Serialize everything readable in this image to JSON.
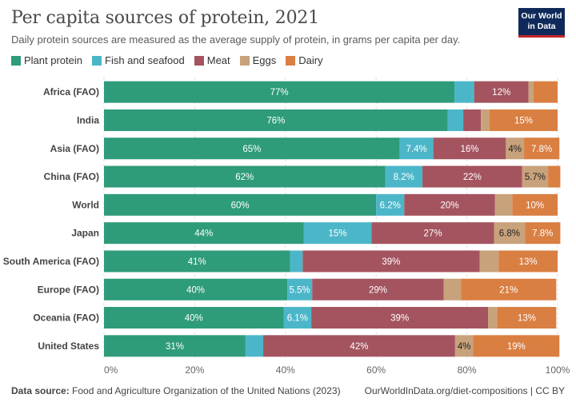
{
  "header": {
    "title": "Per capita sources of protein, 2021",
    "subtitle": "Daily protein sources are measured as the average supply of protein, in grams per capita per day.",
    "logo_line1": "Our World",
    "logo_line2": "in Data"
  },
  "footer": {
    "source_label": "Data source:",
    "source_text": "Food and Agriculture Organization of the United Nations (2023)",
    "right_text": "OurWorldInData.org/diet-compositions | CC BY"
  },
  "chart_data": {
    "type": "bar",
    "orientation": "horizontal",
    "stacked": true,
    "xlim": [
      0,
      100
    ],
    "xticks": [
      "0%",
      "20%",
      "40%",
      "60%",
      "80%",
      "100%"
    ],
    "grid": true,
    "legend_position": "top-left",
    "categories": [
      "Africa (FAO)",
      "India",
      "Asia (FAO)",
      "China (FAO)",
      "World",
      "Japan",
      "South America (FAO)",
      "Europe (FAO)",
      "Oceania (FAO)",
      "United States"
    ],
    "series": [
      {
        "name": "Plant protein",
        "color": "#2e9b7a",
        "values": [
          77.3,
          75.8,
          65.2,
          62.0,
          60.0,
          44.0,
          41.0,
          40.4,
          39.6,
          31.2
        ],
        "labels": [
          "77%",
          "76%",
          "65%",
          "62%",
          "60%",
          "44%",
          "41%",
          "40%",
          "40%",
          "31%"
        ]
      },
      {
        "name": "Fish and seafood",
        "color": "#4cb6c9",
        "values": [
          4.3,
          3.4,
          7.4,
          8.2,
          6.2,
          15.0,
          2.8,
          5.5,
          6.1,
          3.9
        ],
        "labels": [
          "",
          "",
          "7.4%",
          "8.2%",
          "6.2%",
          "15%",
          "",
          "5.5%",
          "6.1%",
          ""
        ]
      },
      {
        "name": "Meat",
        "color": "#a4545f",
        "values": [
          12.0,
          3.9,
          16.0,
          22.0,
          20.0,
          27.0,
          39.0,
          29.0,
          39.0,
          42.3
        ],
        "labels": [
          "12%",
          "",
          "16%",
          "22%",
          "20%",
          "27%",
          "39%",
          "29%",
          "39%",
          "42%"
        ]
      },
      {
        "name": "Eggs",
        "color": "#c8a27b",
        "values": [
          1.1,
          1.9,
          4.0,
          5.7,
          3.8,
          6.8,
          4.2,
          3.8,
          2.0,
          4.0
        ],
        "labels": [
          "",
          "",
          "4%",
          "5.7%",
          "",
          "6.8%",
          "",
          "",
          "",
          "4%"
        ]
      },
      {
        "name": "Dairy",
        "color": "#d97f42",
        "values": [
          5.3,
          15.0,
          7.8,
          2.7,
          10.0,
          7.8,
          13.0,
          21.0,
          13.0,
          19.0
        ],
        "labels": [
          "",
          "15%",
          "7.8%",
          "",
          "10%",
          "7.8%",
          "13%",
          "21%",
          "13%",
          "19%"
        ]
      }
    ]
  }
}
